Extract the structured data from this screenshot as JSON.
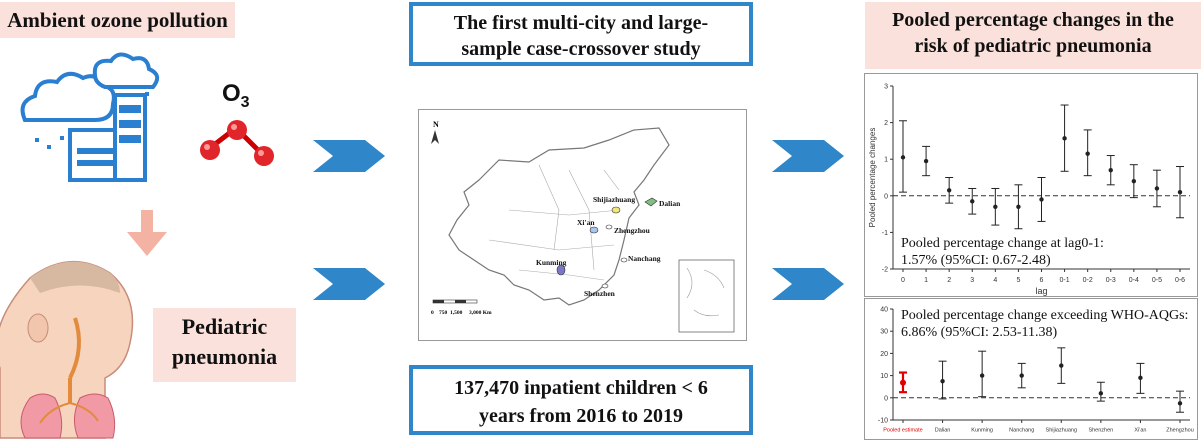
{
  "left": {
    "title": "Ambient ozone pollution",
    "o3_label": "O",
    "o3_sub": "3",
    "outcome": [
      "Pediatric",
      "pneumonia"
    ]
  },
  "middle": {
    "title_lines": [
      "The first multi-city and large-",
      "sample case-crossover study"
    ],
    "map": {
      "north": "N",
      "cities": [
        "Shijiazhuang",
        "Dalian",
        "Xi'an",
        "Zhengzhou",
        "Nanchang",
        "Kunming",
        "Shenzhen"
      ],
      "scale_labels": [
        "0",
        "750",
        "1,500",
        "3,000 Km"
      ]
    },
    "bottom_lines": [
      "137,470 inpatient children < 6",
      "years from 2016 to 2019"
    ]
  },
  "right": {
    "title_lines": [
      "Pooled percentage changes in the",
      "risk of pediatric pneumonia"
    ]
  },
  "colors": {
    "accent_blue": "#2f86c8",
    "pink_bg": "#fbe1dc",
    "red_pooled": "#e00000"
  },
  "chart_data": [
    {
      "type": "scatter",
      "title": "",
      "xlabel": "lag",
      "ylabel": "Pooled percentage changes",
      "ylim": [
        -2,
        3
      ],
      "yticks": [
        "-2",
        "-1",
        "0",
        "1",
        "2",
        "3"
      ],
      "categories": [
        "0",
        "1",
        "2",
        "3",
        "4",
        "5",
        "6",
        "0-1",
        "0-2",
        "0-3",
        "0-4",
        "0-5",
        "0-6"
      ],
      "values": [
        1.05,
        0.95,
        0.15,
        -0.15,
        -0.3,
        -0.3,
        -0.1,
        1.57,
        1.15,
        0.7,
        0.4,
        0.2,
        0.1
      ],
      "lower": [
        0.1,
        0.55,
        -0.2,
        -0.5,
        -0.8,
        -0.9,
        -0.7,
        0.67,
        0.55,
        0.3,
        -0.05,
        -0.3,
        -0.6
      ],
      "upper": [
        2.05,
        1.35,
        0.5,
        0.2,
        0.2,
        0.3,
        0.5,
        2.48,
        1.8,
        1.1,
        0.85,
        0.7,
        0.8
      ],
      "reference_line": 0,
      "annotation_lines": [
        "Pooled percentage change at lag0-1:",
        "1.57% (95%CI: 0.67-2.48)"
      ]
    },
    {
      "type": "scatter",
      "title": "",
      "xlabel": "",
      "ylabel": "",
      "ylim": [
        -10,
        40
      ],
      "yticks": [
        "-10",
        "0",
        "10",
        "20",
        "30",
        "40"
      ],
      "categories": [
        "Pooled estimate",
        "Dalian",
        "Kunming",
        "Nanchang",
        "Shijiazhuang",
        "Shenzhen",
        "Xi'an",
        "Zhengzhou"
      ],
      "values": [
        6.86,
        7.5,
        10,
        10,
        14.5,
        2,
        9,
        -2.5
      ],
      "lower": [
        2.53,
        -0.5,
        0.5,
        4.5,
        6.5,
        -1.5,
        2,
        -6.5
      ],
      "upper": [
        11.38,
        16.5,
        21,
        15.5,
        22.5,
        7,
        15.5,
        3
      ],
      "highlight": "Pooled estimate",
      "reference_line": 0,
      "annotation_lines": [
        "Pooled percentage change exceeding WHO-AQGs:",
        "6.86% (95%CI: 2.53-11.38)"
      ]
    }
  ]
}
